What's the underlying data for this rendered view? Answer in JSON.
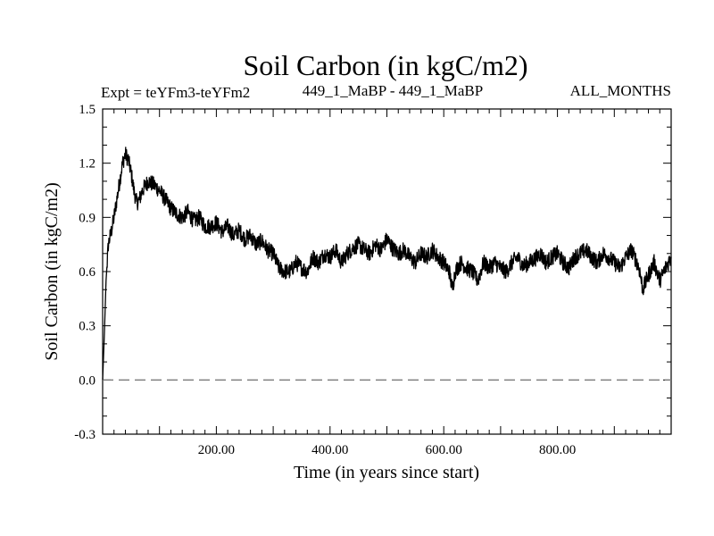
{
  "chart_data": {
    "type": "line",
    "title": "Soil Carbon (in kgC/m2)",
    "subtitle_left": "Expt = teYFm3-teYFm2",
    "subtitle_center": "449_1_MaBP - 449_1_MaBP",
    "subtitle_right": "ALL_MONTHS",
    "xlabel": "Time (in years since start)",
    "ylabel": "Soil Carbon (in kgC/m2)",
    "xlim": [
      0,
      1000
    ],
    "ylim": [
      -0.3,
      1.5
    ],
    "x_ticks": [
      200,
      400,
      600,
      800
    ],
    "x_tick_labels": [
      "200.00",
      "400.00",
      "600.00",
      "800.00"
    ],
    "y_ticks": [
      -0.3,
      0.0,
      0.3,
      0.6,
      0.9,
      1.2,
      1.5
    ],
    "y_tick_labels": [
      "-0.3",
      "0.0",
      "0.3",
      "0.6",
      "0.9",
      "1.2",
      "1.5"
    ],
    "reference_line": {
      "y": 0.0,
      "style": "dashed",
      "color": "#808080"
    },
    "series": [
      {
        "name": "Soil Carbon",
        "color": "#000000",
        "noise": 0.045,
        "x": [
          0,
          3,
          6,
          10,
          15,
          20,
          25,
          30,
          35,
          40,
          45,
          50,
          55,
          60,
          65,
          70,
          80,
          90,
          100,
          110,
          120,
          130,
          140,
          150,
          160,
          170,
          180,
          190,
          200,
          210,
          220,
          230,
          240,
          250,
          260,
          270,
          280,
          290,
          300,
          310,
          320,
          330,
          340,
          350,
          360,
          370,
          380,
          390,
          400,
          410,
          420,
          430,
          440,
          450,
          460,
          470,
          480,
          490,
          500,
          510,
          520,
          530,
          540,
          550,
          560,
          570,
          580,
          590,
          600,
          610,
          615,
          620,
          630,
          640,
          650,
          660,
          670,
          680,
          690,
          700,
          710,
          720,
          730,
          740,
          750,
          760,
          770,
          780,
          790,
          800,
          810,
          820,
          830,
          840,
          850,
          860,
          870,
          880,
          890,
          900,
          910,
          920,
          930,
          940,
          945,
          950,
          960,
          970,
          980,
          990,
          1000
        ],
        "y": [
          0.0,
          0.25,
          0.55,
          0.75,
          0.82,
          0.9,
          1.0,
          1.1,
          1.2,
          1.25,
          1.22,
          1.15,
          1.05,
          0.98,
          1.0,
          1.05,
          1.1,
          1.08,
          1.05,
          1.0,
          0.95,
          0.92,
          0.9,
          0.93,
          0.88,
          0.9,
          0.85,
          0.85,
          0.87,
          0.82,
          0.85,
          0.8,
          0.83,
          0.78,
          0.8,
          0.75,
          0.77,
          0.72,
          0.7,
          0.62,
          0.6,
          0.6,
          0.65,
          0.62,
          0.6,
          0.68,
          0.65,
          0.7,
          0.68,
          0.72,
          0.65,
          0.7,
          0.73,
          0.75,
          0.72,
          0.7,
          0.75,
          0.72,
          0.78,
          0.73,
          0.7,
          0.72,
          0.68,
          0.65,
          0.7,
          0.68,
          0.72,
          0.68,
          0.65,
          0.6,
          0.5,
          0.6,
          0.65,
          0.62,
          0.6,
          0.55,
          0.65,
          0.62,
          0.65,
          0.62,
          0.6,
          0.65,
          0.68,
          0.63,
          0.65,
          0.67,
          0.7,
          0.65,
          0.68,
          0.7,
          0.65,
          0.62,
          0.68,
          0.7,
          0.72,
          0.68,
          0.65,
          0.7,
          0.68,
          0.65,
          0.62,
          0.68,
          0.72,
          0.65,
          0.6,
          0.5,
          0.58,
          0.65,
          0.55,
          0.62,
          0.68
        ]
      }
    ]
  }
}
